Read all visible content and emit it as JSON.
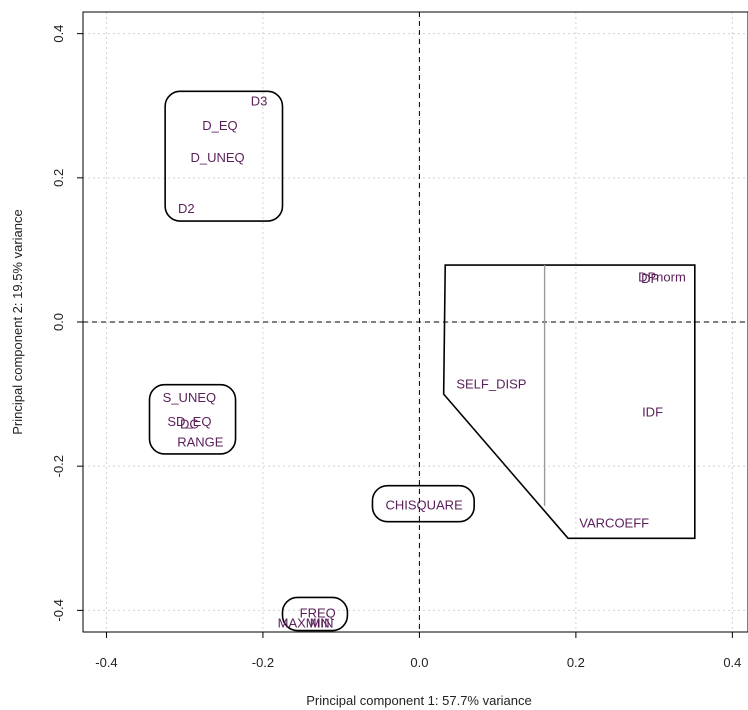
{
  "chart_data": {
    "type": "scatter",
    "xlabel": "Principal component 1: 57.7% variance",
    "ylabel": "Principal component 2: 19.5% variance",
    "xlim": [
      -0.43,
      0.42
    ],
    "ylim": [
      -0.43,
      0.43
    ],
    "x_ticks": [
      -0.4,
      -0.2,
      0.0,
      0.2,
      0.4
    ],
    "y_ticks": [
      -0.4,
      -0.2,
      0.0,
      0.2,
      0.4
    ],
    "x_tick_labels": [
      "-0.4",
      "-0.2",
      "0.0",
      "0.2",
      "0.4"
    ],
    "y_tick_labels": [
      "-0.4",
      "-0.2",
      "0.0",
      "0.2",
      "0.4"
    ],
    "grid": true,
    "reference_lines": {
      "x": 0,
      "y": 0,
      "style": "dashed"
    },
    "point_color": "#5a1f5a",
    "points": [
      {
        "label": "D3",
        "x": -0.205,
        "y": 0.307
      },
      {
        "label": "D_EQ",
        "x": -0.255,
        "y": 0.273
      },
      {
        "label": "D_UNEQ",
        "x": -0.258,
        "y": 0.229
      },
      {
        "label": "D2",
        "x": -0.298,
        "y": 0.158
      },
      {
        "label": "DP",
        "x": 0.295,
        "y": 0.061
      },
      {
        "label": "DPnorm",
        "x": 0.31,
        "y": 0.063
      },
      {
        "label": "SELF_DISP",
        "x": 0.092,
        "y": -0.085
      },
      {
        "label": "IDF",
        "x": 0.298,
        "y": -0.124
      },
      {
        "label": "VARCOEFF",
        "x": 0.249,
        "y": -0.278
      },
      {
        "label": "CHISQUARE",
        "x": 0.006,
        "y": -0.253
      },
      {
        "label": "S_UNEQ",
        "x": -0.294,
        "y": -0.104
      },
      {
        "label": "SD_EQ",
        "x": -0.294,
        "y": -0.137
      },
      {
        "label": "DC",
        "x": -0.294,
        "y": -0.141
      },
      {
        "label": "RANGE",
        "x": -0.28,
        "y": -0.166
      },
      {
        "label": "FREQ",
        "x": -0.13,
        "y": -0.403
      },
      {
        "label": "MAXMIN",
        "x": -0.148,
        "y": -0.417
      },
      {
        "label": "MIN",
        "x": -0.125,
        "y": -0.417
      }
    ],
    "clusters": [
      {
        "type": "rounded-box",
        "bounds": [
          -0.325,
          -0.175,
          0.14,
          0.32
        ]
      },
      {
        "type": "rounded-box",
        "bounds": [
          -0.345,
          -0.235,
          -0.183,
          -0.087
        ]
      },
      {
        "type": "rounded-box",
        "bounds": [
          -0.06,
          0.07,
          -0.277,
          -0.227
        ]
      },
      {
        "type": "rounded-box",
        "bounds": [
          -0.175,
          -0.092,
          -0.428,
          -0.382
        ]
      },
      {
        "type": "polygon",
        "vertices": [
          [
            0.033,
            0.079
          ],
          [
            0.352,
            0.079
          ],
          [
            0.352,
            -0.3
          ],
          [
            0.19,
            -0.3
          ],
          [
            0.031,
            -0.1
          ]
        ]
      }
    ],
    "divider": {
      "x": 0.16,
      "y_range": [
        -0.255,
        0.079
      ],
      "color": "#999999"
    }
  }
}
